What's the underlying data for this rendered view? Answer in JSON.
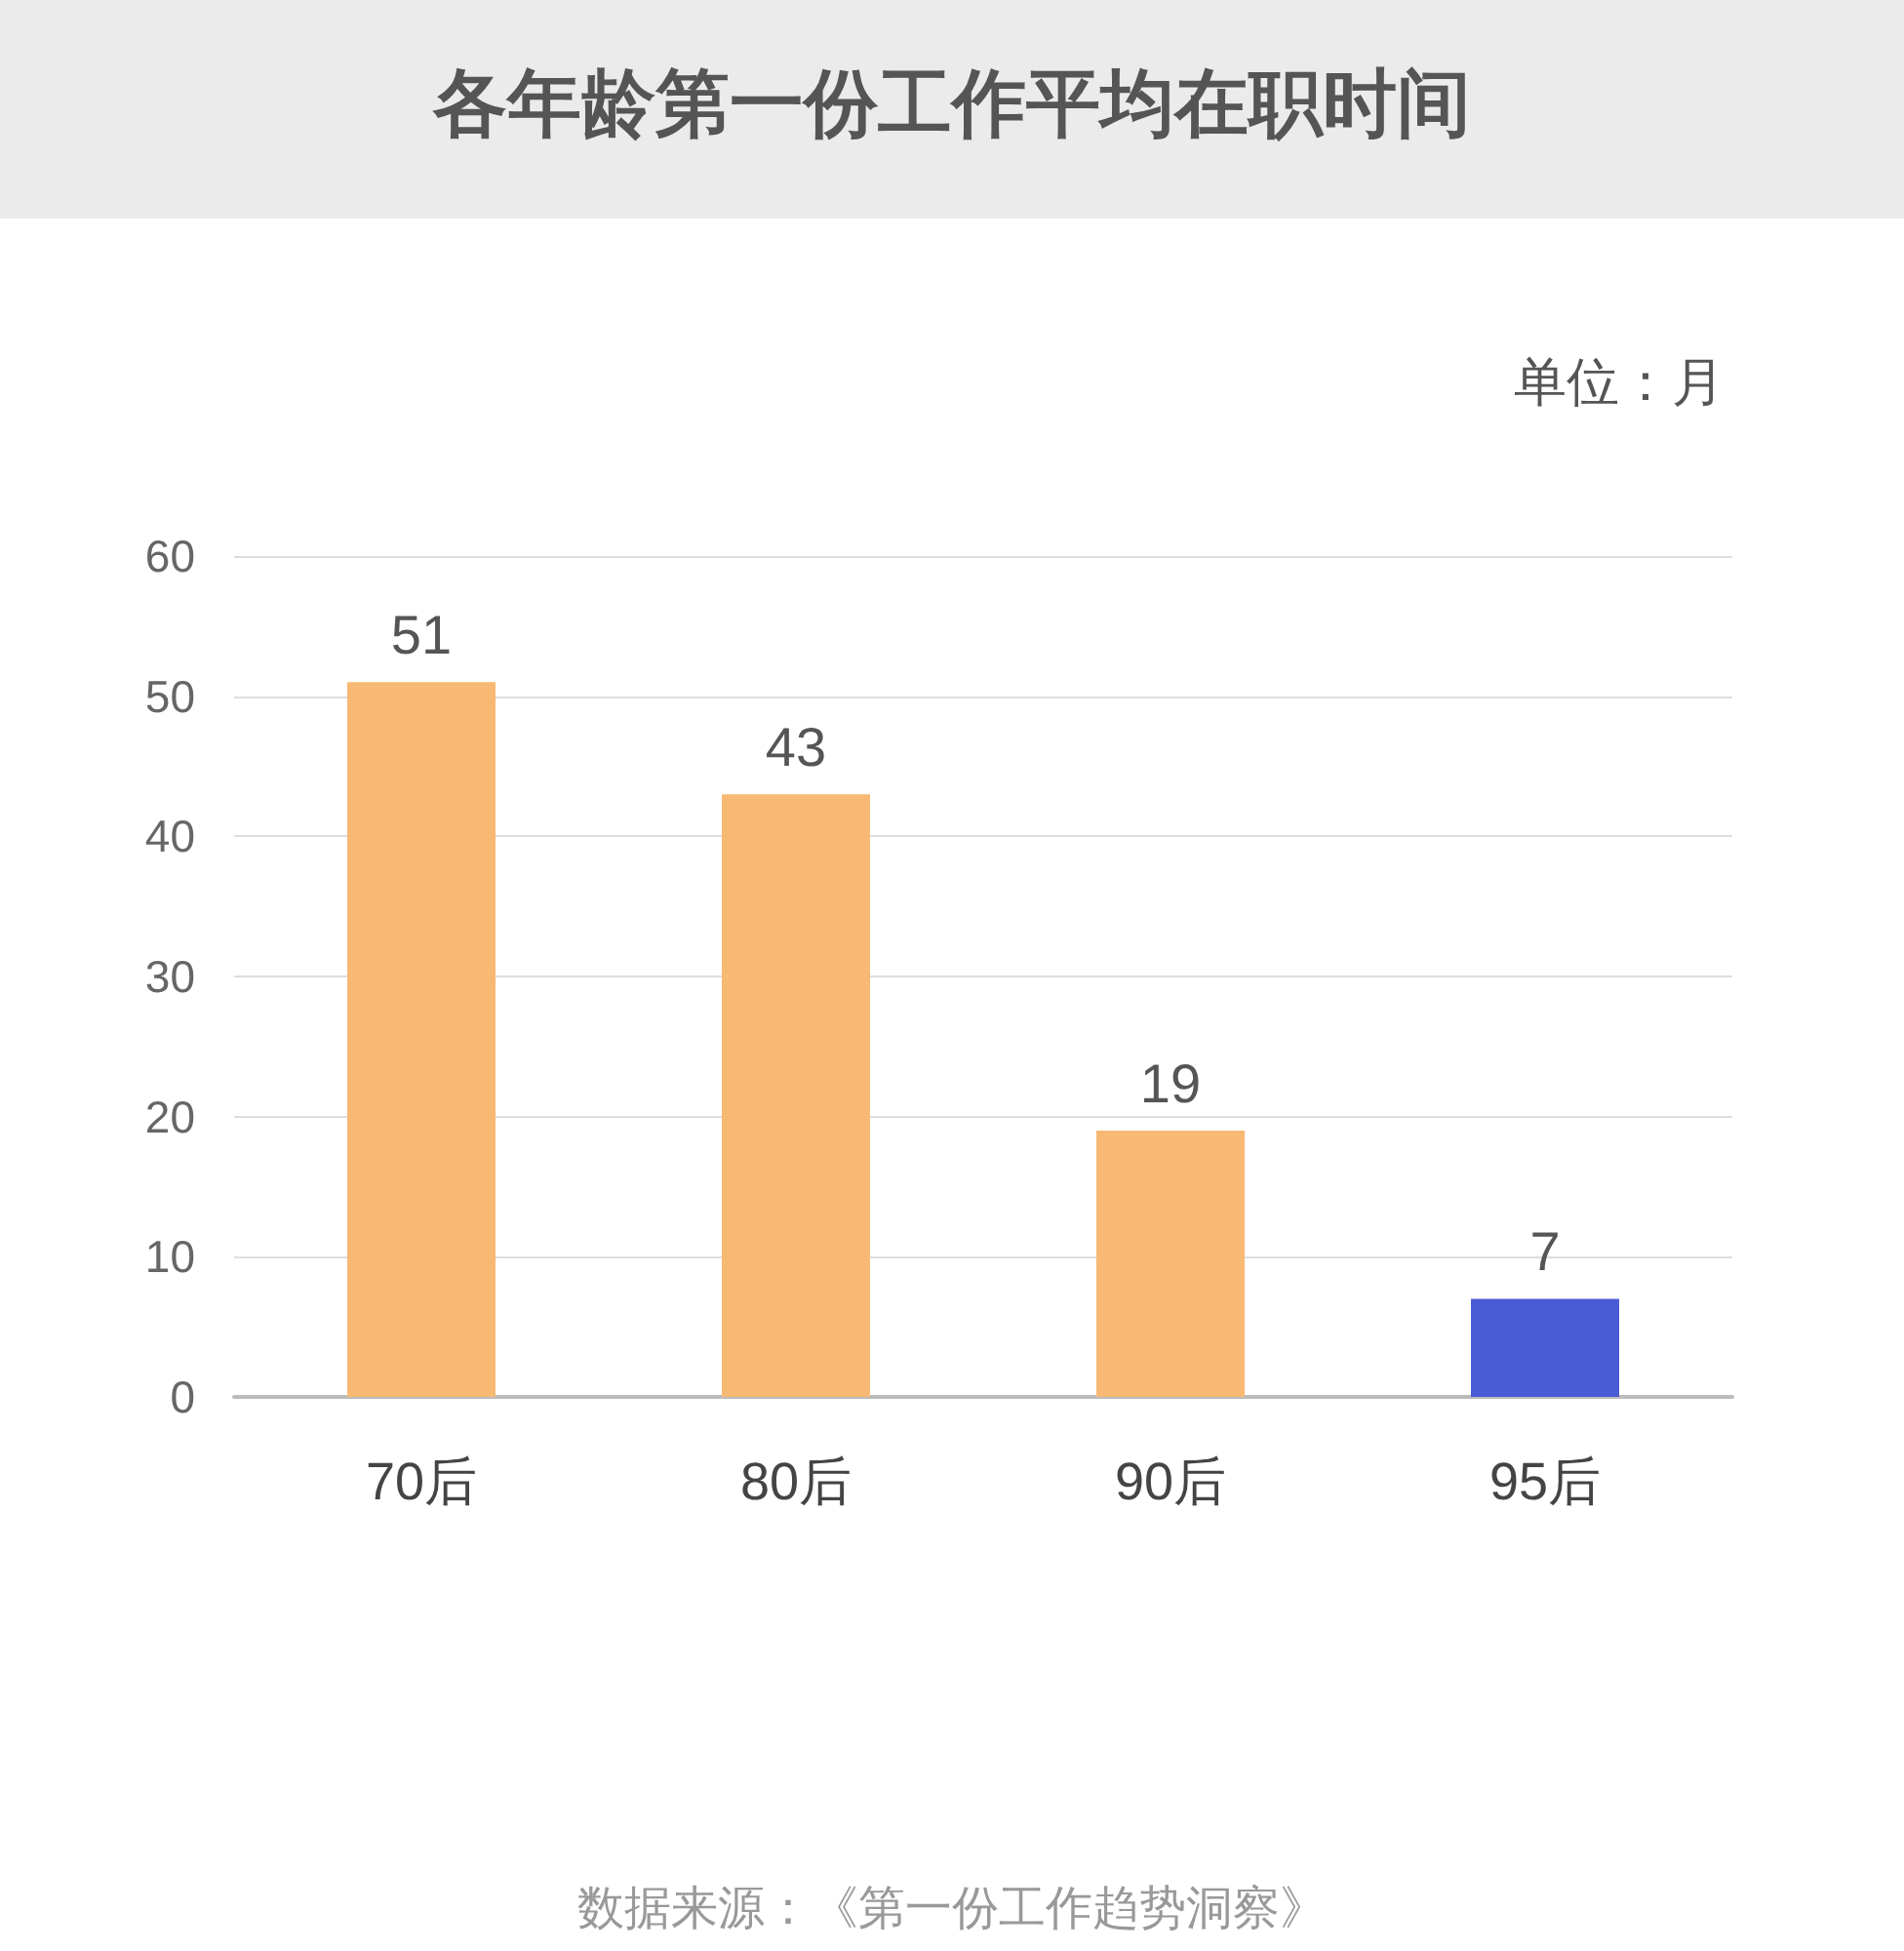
{
  "chart_data": {
    "type": "bar",
    "title": "各年龄第一份工作平均在职时间",
    "categories": [
      "70后",
      "80后",
      "90后",
      "95后"
    ],
    "values": [
      51,
      43,
      19,
      7
    ],
    "colors": [
      "#f7b974",
      "#f7b974",
      "#f7b974",
      "#4a5bd6"
    ],
    "ylim": [
      0,
      60
    ],
    "yticks": [
      0,
      10,
      20,
      30,
      40,
      50,
      60
    ],
    "grid": "y",
    "data_labels": true,
    "annotations": [
      "单位：月",
      "数据来源：《第一份工作趋势洞察》"
    ]
  }
}
